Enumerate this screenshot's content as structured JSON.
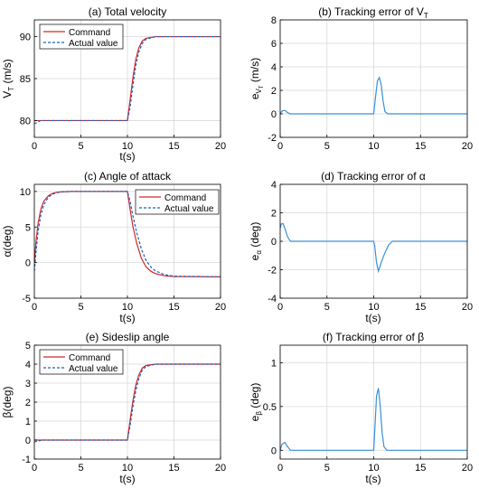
{
  "colors": {
    "command": "#d62728",
    "actual": "#1f5fbf",
    "error": "#3a8fd8",
    "axis": "#000000",
    "grid": "#d9d9d9"
  },
  "chart_data": [
    {
      "id": "a",
      "type": "line",
      "title": "(a) Total velocity",
      "xlabel": "t(s)",
      "ylabel": "V_T (m/s)",
      "xlim": [
        0,
        20
      ],
      "ylim": [
        78,
        92
      ],
      "xticks": [
        0,
        5,
        10,
        15,
        20
      ],
      "yticks": [
        80,
        85,
        90
      ],
      "grid": true,
      "legend": "top-left",
      "series": [
        {
          "name": "Command",
          "style": "solid",
          "color_key": "command",
          "x": [
            0,
            10,
            10.3,
            10.6,
            10.9,
            11.2,
            11.6,
            12,
            13,
            15,
            20
          ],
          "y": [
            80,
            80,
            82.6,
            85.2,
            87.3,
            88.6,
            89.5,
            89.8,
            90,
            90,
            90
          ]
        },
        {
          "name": "Actual value",
          "style": "dashed",
          "color_key": "actual",
          "x": [
            0,
            0.3,
            0.7,
            1.2,
            10,
            10.3,
            10.6,
            10.9,
            11.2,
            11.6,
            12,
            13,
            15,
            20
          ],
          "y": [
            79.6,
            79.8,
            80,
            80,
            80,
            81.7,
            84.3,
            86.6,
            88.1,
            89.2,
            89.7,
            90,
            90,
            90
          ]
        }
      ]
    },
    {
      "id": "b",
      "type": "line",
      "title": "(b) Tracking error of V_T",
      "xlabel": "",
      "ylabel": "e_VT (m/s)",
      "xlim": [
        0,
        20
      ],
      "ylim": [
        -2,
        8
      ],
      "xticks": [
        0,
        5,
        10,
        15,
        20
      ],
      "yticks": [
        -2,
        0,
        2,
        4,
        6,
        8
      ],
      "grid": true,
      "series": [
        {
          "name": "",
          "style": "solid",
          "color_key": "error",
          "x": [
            0,
            0.2,
            0.5,
            0.8,
            1.1,
            1.5,
            10,
            10.2,
            10.4,
            10.6,
            10.8,
            11,
            11.2,
            11.5,
            20
          ],
          "y": [
            0,
            0.25,
            0.3,
            0.1,
            0,
            0,
            0,
            1.5,
            2.8,
            3.1,
            2.5,
            1.1,
            0.2,
            0,
            0
          ]
        }
      ]
    },
    {
      "id": "c",
      "type": "line",
      "title": "(c) Angle of attack",
      "xlabel": "t(s)",
      "ylabel": "α(deg)",
      "xlim": [
        0,
        20
      ],
      "ylim": [
        -5,
        11
      ],
      "xticks": [
        0,
        5,
        10,
        15,
        20
      ],
      "yticks": [
        -5,
        0,
        5,
        10
      ],
      "grid": true,
      "legend": "right",
      "series": [
        {
          "name": "Command",
          "style": "solid",
          "color_key": "command",
          "x": [
            0,
            0.2,
            0.4,
            0.7,
            1,
            1.5,
            2,
            2.5,
            3,
            4,
            5,
            10,
            10.3,
            10.6,
            11,
            11.5,
            12,
            12.5,
            13,
            14,
            15,
            20
          ],
          "y": [
            0,
            3.2,
            5.5,
            7.5,
            8.6,
            9.4,
            9.75,
            9.9,
            9.95,
            10,
            10,
            10,
            7.4,
            5,
            2.7,
            0.6,
            -0.6,
            -1.2,
            -1.55,
            -1.85,
            -1.95,
            -2
          ]
        },
        {
          "name": "Actual value",
          "style": "dashed",
          "color_key": "actual",
          "x": [
            0,
            0.2,
            0.4,
            0.7,
            1,
            1.5,
            2,
            2.5,
            3,
            4,
            5,
            10,
            10.3,
            10.6,
            11,
            11.5,
            12,
            12.5,
            13,
            14,
            15,
            20
          ],
          "y": [
            -1.2,
            1.8,
            4.4,
            6.7,
            8.1,
            9.2,
            9.65,
            9.85,
            9.95,
            10,
            10,
            10,
            8.5,
            6.5,
            4.2,
            1.9,
            0.3,
            -0.6,
            -1.15,
            -1.7,
            -1.9,
            -2
          ]
        }
      ]
    },
    {
      "id": "d",
      "type": "line",
      "title": "(d) Tracking error of α",
      "xlabel": "t(s)",
      "ylabel": "e_α (deg)",
      "xlim": [
        0,
        20
      ],
      "ylim": [
        -4,
        4
      ],
      "xticks": [
        0,
        5,
        10,
        15,
        20
      ],
      "yticks": [
        -4,
        -2,
        0,
        2,
        4
      ],
      "grid": true,
      "series": [
        {
          "name": "",
          "style": "solid",
          "color_key": "error",
          "x": [
            0,
            0.1,
            0.3,
            0.5,
            0.8,
            1.1,
            1.5,
            10,
            10.1,
            10.3,
            10.5,
            10.8,
            11.2,
            11.6,
            12,
            20
          ],
          "y": [
            0.9,
            1.2,
            1.25,
            0.9,
            0.3,
            0,
            0,
            0,
            -0.3,
            -1.5,
            -2.1,
            -1.5,
            -0.8,
            -0.25,
            0,
            0
          ]
        }
      ]
    },
    {
      "id": "e",
      "type": "line",
      "title": "(e) Sideslip angle",
      "xlabel": "t(s)",
      "ylabel": "β(deg)",
      "xlim": [
        0,
        20
      ],
      "ylim": [
        -1,
        5
      ],
      "xticks": [
        0,
        5,
        10,
        15,
        20
      ],
      "yticks": [
        -1,
        0,
        1,
        2,
        3,
        4,
        5
      ],
      "grid": true,
      "legend": "top-left",
      "series": [
        {
          "name": "Command",
          "style": "solid",
          "color_key": "command",
          "x": [
            0,
            10,
            10.3,
            10.6,
            10.9,
            11.2,
            11.6,
            12,
            13,
            15,
            20
          ],
          "y": [
            0,
            0,
            1.1,
            2.1,
            2.9,
            3.4,
            3.8,
            3.93,
            4,
            4,
            4
          ]
        },
        {
          "name": "Actual value",
          "style": "dashed",
          "color_key": "actual",
          "x": [
            0,
            0.4,
            0.8,
            10,
            10.3,
            10.6,
            10.9,
            11.2,
            11.6,
            12,
            13,
            15,
            20
          ],
          "y": [
            -0.1,
            -0.05,
            0,
            0,
            0.8,
            1.8,
            2.6,
            3.2,
            3.7,
            3.88,
            4,
            4,
            4
          ]
        }
      ]
    },
    {
      "id": "f",
      "type": "line",
      "title": "(f) Tracking error of β",
      "xlabel": "t(s)",
      "ylabel": "e_β (deg)",
      "xlim": [
        0,
        20
      ],
      "ylim": [
        -0.1,
        1.2
      ],
      "xticks": [
        0,
        5,
        10,
        15,
        20
      ],
      "yticks": [
        0,
        0.5,
        1
      ],
      "grid": true,
      "series": [
        {
          "name": "",
          "style": "solid",
          "color_key": "error",
          "x": [
            0,
            0.2,
            0.5,
            0.8,
            1.1,
            1.5,
            10,
            10.1,
            10.3,
            10.5,
            10.7,
            10.9,
            11.1,
            11.4,
            20
          ],
          "y": [
            0,
            0.07,
            0.09,
            0.04,
            0,
            0,
            0,
            0.2,
            0.62,
            0.71,
            0.5,
            0.2,
            0.04,
            0,
            0
          ]
        }
      ]
    }
  ]
}
